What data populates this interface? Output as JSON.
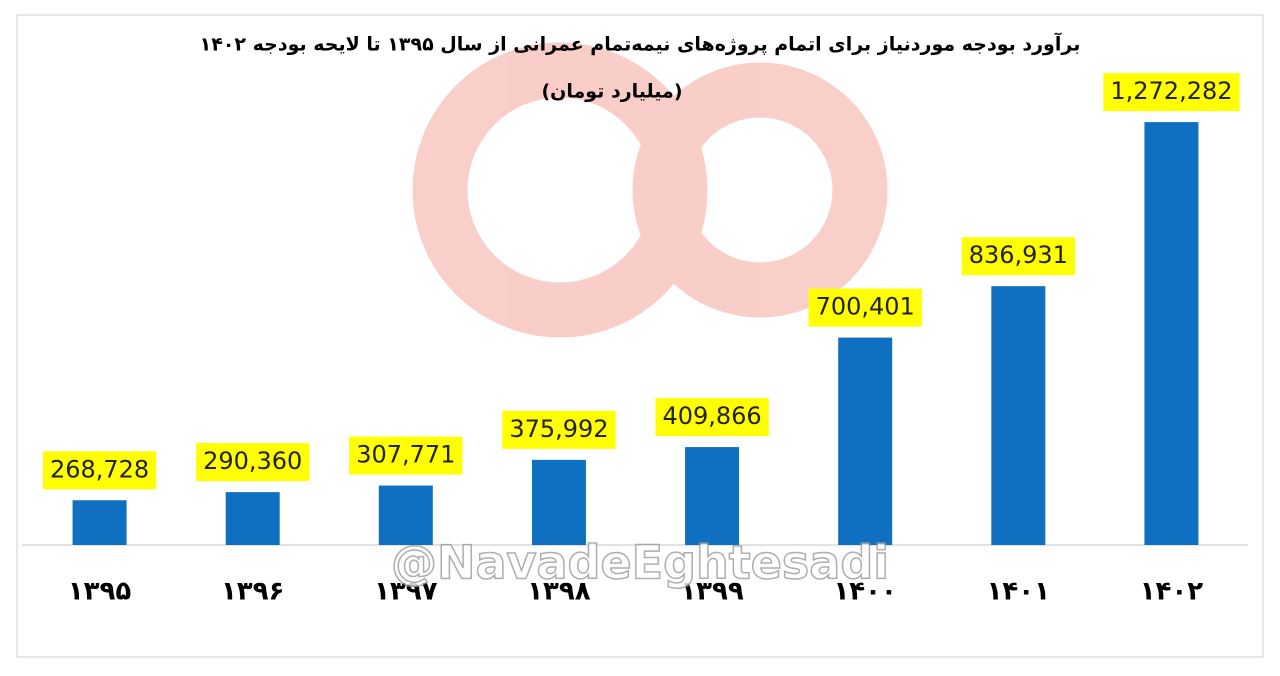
{
  "chart_data": {
    "type": "bar",
    "title": "برآورد بودجه موردنیاز برای اتمام پروژه‌های نیمه‌تمام عمرانی از سال ۱۳۹۵ تا لایحه بودجه ۱۴۰۲",
    "subtitle": "(میلیارد تومان)",
    "watermark": "@NavadeEghtesadi",
    "categories": [
      "۱۳۹۵",
      "۱۳۹۶",
      "۱۳۹۷",
      "۱۳۹۸",
      "۱۳۹۹",
      "۱۴۰۰",
      "۱۴۰۱",
      "۱۴۰۲"
    ],
    "values": [
      268728,
      290360,
      307771,
      375992,
      409866,
      700401,
      836931,
      1272282
    ],
    "value_labels": [
      "268,728",
      "290,360",
      "307,771",
      "375,992",
      "409,866",
      "700,401",
      "836,931",
      "1,272,282"
    ],
    "color": "#0f6fc0",
    "label_background": "#ffff00",
    "ylim": [
      150000,
      1400000
    ]
  }
}
